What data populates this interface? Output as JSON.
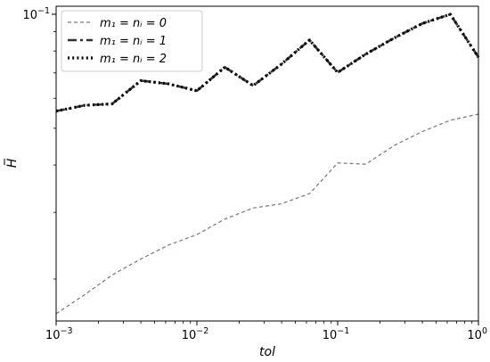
{
  "chart_data": {
    "type": "line",
    "xscale": "log",
    "yscale": "log",
    "xlabel": "tol",
    "ylabel": "H̅",
    "xlim": [
      0.001,
      1
    ],
    "ylim": [
      0.0155,
      0.105
    ],
    "xticks": [
      {
        "value": 0.001,
        "base": "10",
        "exp": "−3"
      },
      {
        "value": 0.01,
        "base": "10",
        "exp": "−2"
      },
      {
        "value": 0.1,
        "base": "10",
        "exp": "−1"
      },
      {
        "value": 1,
        "base": "10",
        "exp": "0"
      }
    ],
    "yticks": [
      {
        "value": 0.1,
        "base": "10",
        "exp": "−1"
      }
    ],
    "grid": false,
    "legend_position": "top-left",
    "x": [
      0.001,
      0.0016,
      0.0025,
      0.004,
      0.0063,
      0.01,
      0.0158,
      0.0251,
      0.0398,
      0.0631,
      0.1,
      0.1585,
      0.2512,
      0.3981,
      0.631,
      1.0
    ],
    "series": [
      {
        "name": "m₁ = nᵢ = 0",
        "style": "dashed",
        "color": "#777777",
        "values": [
          0.0162,
          0.0182,
          0.0205,
          0.0226,
          0.0246,
          0.0262,
          0.0288,
          0.0308,
          0.0316,
          0.0336,
          0.0405,
          0.0402,
          0.045,
          0.049,
          0.0525,
          0.0545
        ]
      },
      {
        "name": "m₁ = nᵢ = 1",
        "style": "dashdot",
        "color": "#333333",
        "values": [
          0.0555,
          0.0575,
          0.058,
          0.0668,
          0.0655,
          0.0628,
          0.0725,
          0.0648,
          0.0738,
          0.0855,
          0.0702,
          0.0785,
          0.0865,
          0.0945,
          0.1,
          0.077
        ]
      },
      {
        "name": "m₁ = nᵢ = 2",
        "style": "dotted",
        "color": "#000000",
        "values": [
          0.0555,
          0.0575,
          0.058,
          0.0668,
          0.0655,
          0.0628,
          0.0725,
          0.0648,
          0.0738,
          0.0855,
          0.0702,
          0.0785,
          0.0865,
          0.0945,
          0.1,
          0.077
        ]
      }
    ]
  }
}
